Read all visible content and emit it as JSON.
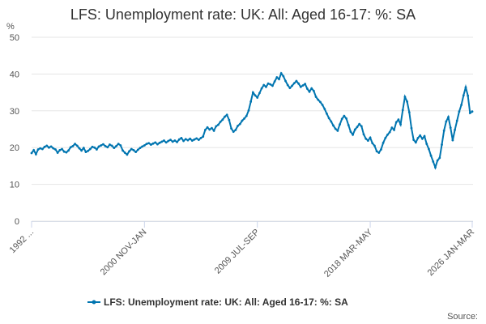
{
  "chart_data": {
    "type": "line",
    "title": "LFS: Unemployment rate: UK: All: Aged 16-17: %: SA",
    "y_label": "%",
    "source": "Source:",
    "ylim": [
      0,
      50
    ],
    "yticks": [
      0,
      10,
      20,
      30,
      40,
      50
    ],
    "grid": true,
    "categories": [
      "1992 ...",
      null,
      null,
      null,
      null,
      null,
      null,
      null,
      null,
      null,
      null,
      null,
      null,
      null,
      null,
      null,
      null,
      null,
      null,
      null,
      null,
      null,
      null,
      null,
      null,
      null,
      null,
      null,
      null,
      null,
      null,
      null,
      null,
      null,
      null,
      null,
      null,
      null,
      null,
      null,
      null,
      null,
      null,
      null,
      null,
      null,
      null,
      null,
      null,
      null,
      null,
      null,
      "2000 NOV-JAN",
      null,
      null,
      null,
      null,
      null,
      null,
      null,
      null,
      null,
      null,
      null,
      null,
      null,
      null,
      null,
      null,
      null,
      null,
      null,
      null,
      null,
      null,
      null,
      null,
      null,
      null,
      null,
      null,
      null,
      null,
      null,
      null,
      null,
      null,
      null,
      null,
      null,
      null,
      null,
      null,
      null,
      null,
      null,
      null,
      null,
      null,
      null,
      null,
      null,
      null,
      null,
      "2009 JUL-SEP",
      null,
      null,
      null,
      null,
      null,
      null,
      null,
      null,
      null,
      null,
      null,
      null,
      null,
      null,
      null,
      null,
      null,
      null,
      null,
      null,
      null,
      null,
      null,
      null,
      null,
      null,
      null,
      null,
      null,
      null,
      null,
      null,
      null,
      null,
      null,
      null,
      null,
      null,
      null,
      null,
      null,
      null,
      null,
      null,
      null,
      null,
      null,
      null,
      null,
      null,
      null,
      "2018 MAR-MAY",
      null,
      null,
      null,
      null,
      null,
      null,
      null,
      null,
      null,
      null,
      null,
      null,
      null,
      null,
      null,
      null,
      null,
      null,
      null,
      null,
      null,
      null,
      null,
      null,
      null,
      null,
      null,
      null,
      null,
      null,
      null,
      null,
      null,
      null,
      null,
      null,
      null,
      null,
      null,
      null,
      null,
      null,
      null,
      null,
      null,
      null,
      "2026 JAN-MAR"
    ],
    "series": [
      {
        "name": "LFS: Unemployment rate: UK: All: Aged 16-17: %: SA",
        "color": "#0075b0",
        "values": [
          18.5,
          19.3,
          18.2,
          19.5,
          19.8,
          19.6,
          20.2,
          20.5,
          20.0,
          20.3,
          19.8,
          19.5,
          18.6,
          19.3,
          19.6,
          18.9,
          18.7,
          19.2,
          20.1,
          20.4,
          21.0,
          20.5,
          19.8,
          19.2,
          19.9,
          18.8,
          19.1,
          19.6,
          20.2,
          20.0,
          19.5,
          20.3,
          20.6,
          20.9,
          20.4,
          20.1,
          20.8,
          20.5,
          19.9,
          20.4,
          21.0,
          20.6,
          19.2,
          18.6,
          18.1,
          19.0,
          19.6,
          19.3,
          18.8,
          19.4,
          19.9,
          20.3,
          20.6,
          21.0,
          21.2,
          20.8,
          21.1,
          21.4,
          20.9,
          21.3,
          21.6,
          21.9,
          21.4,
          21.8,
          22.1,
          21.6,
          21.9,
          21.5,
          22.2,
          22.6,
          21.8,
          22.3,
          22.0,
          22.4,
          21.9,
          22.2,
          22.5,
          22.1,
          22.6,
          23.0,
          24.8,
          25.5,
          24.9,
          25.3,
          24.6,
          25.8,
          26.2,
          27.0,
          27.6,
          28.4,
          28.9,
          27.5,
          25.2,
          24.3,
          24.8,
          25.9,
          26.4,
          27.3,
          27.9,
          28.6,
          30.1,
          32.5,
          35.0,
          34.2,
          33.6,
          34.8,
          36.1,
          37.0,
          36.5,
          37.4,
          37.2,
          36.8,
          38.0,
          39.1,
          38.6,
          40.2,
          39.4,
          38.1,
          37.0,
          36.2,
          36.8,
          37.5,
          38.1,
          37.4,
          36.5,
          36.9,
          37.3,
          36.0,
          35.2,
          36.1,
          35.4,
          33.8,
          33.0,
          32.4,
          31.6,
          30.5,
          29.2,
          28.0,
          27.1,
          26.0,
          25.1,
          24.6,
          26.3,
          27.8,
          28.6,
          27.9,
          26.1,
          24.3,
          23.5,
          24.9,
          25.6,
          26.4,
          25.8,
          23.6,
          22.4,
          21.9,
          22.7,
          21.2,
          20.5,
          19.0,
          18.6,
          19.5,
          21.3,
          22.6,
          23.5,
          24.2,
          25.4,
          24.8,
          26.9,
          27.6,
          26.3,
          30.2,
          33.8,
          32.5,
          29.6,
          25.3,
          22.1,
          21.4,
          22.6,
          23.3,
          22.4,
          23.1,
          21.0,
          19.6,
          17.8,
          16.2,
          14.6,
          16.5,
          17.2,
          20.8,
          24.6,
          27.1,
          28.3,
          25.4,
          22.0,
          24.8,
          27.3,
          29.8,
          31.6,
          34.2,
          36.4,
          34.1,
          29.4,
          29.8
        ]
      }
    ]
  }
}
